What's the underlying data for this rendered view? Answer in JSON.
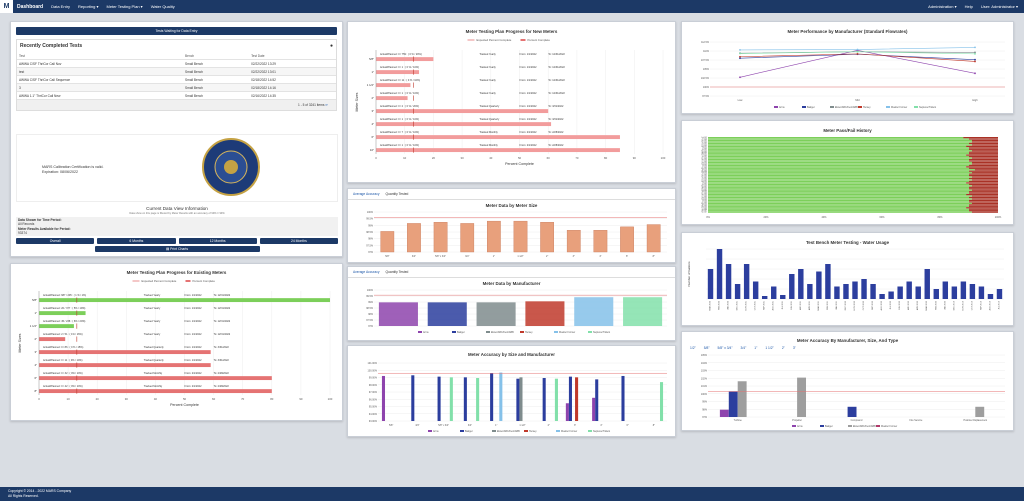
{
  "nav": {
    "logo": "M",
    "brand": "Dashboard",
    "items": [
      "Data Entry",
      "Reporting ▾",
      "Meter Testing Plan ▾",
      "Water Quality"
    ],
    "right": [
      "Administration ▾",
      "Help",
      "User: Administrator ▾"
    ]
  },
  "banner": {
    "label": "Tests Waiting for Data Entry"
  },
  "recent": {
    "title": "Recently Completed Tests",
    "columns": [
      "Test",
      "Bench",
      "Test Date"
    ],
    "rows": [
      [
        "AWWA C/SF ThriCor Call Nov",
        "Small Bench",
        "02/22/2022 13:29"
      ],
      [
        "test",
        "Small Bench",
        "02/22/2022 13:01"
      ],
      [
        "AWWA C/SF ThriCor Call Sequence",
        "Small Bench",
        "02/18/2022 14:52"
      ],
      [
        "3",
        "Small Bench",
        "02/18/2022 14:16"
      ],
      [
        "AWWA 1.1\" ThriCor Call New",
        "Small Bench",
        "02/16/2022 14:35"
      ]
    ],
    "pager": "1 - 5 of 3241 items"
  },
  "cert": {
    "line1": "MARS Calibration Certification is valid.",
    "line2": "Expiration: 08/06/2022",
    "seal": "Calibration Seal"
  },
  "view": {
    "title": "Current Data View Information",
    "note": "Data show on this page is filtered by Meter Results with an accuracy of 99% ± 99%",
    "period_label": "Data Shown for Time Period:",
    "period_value": "All Records",
    "results_label": "Meter Results Available for Period:",
    "results_value": "93374",
    "buttons": [
      "Overall",
      "6 Months",
      "12 Months",
      "24 Months"
    ],
    "print": "Print Charts"
  },
  "tabs": {
    "accuracy": "Average Accuracy",
    "quantity": "Quantity Tested"
  },
  "colors": {
    "nav": "#1c3966",
    "red": "#e57373",
    "green": "#7ccf5a",
    "pink": "#f5a3a3"
  },
  "chart_data": [
    {
      "id": "new_meters",
      "type": "bar",
      "title": "Meter Testing Plan Progress for New Meters",
      "legend": [
        "Expected Percent Complete",
        "Percent Complete"
      ],
      "xlabel": "Percent Complete",
      "ylabel": "Meter Sizes",
      "xlim": [
        0,
        100
      ],
      "categories": [
        "5/8\"",
        "1\"",
        "1 1/2\"",
        "2\"",
        "3\"",
        "4\"",
        "6\"",
        "10\""
      ],
      "values": [
        20,
        15,
        12,
        11,
        60,
        61,
        85,
        85
      ],
      "expected": [
        13,
        13,
        13,
        13,
        13,
        13,
        13,
        13
      ],
      "labels": [
        "Actual/Planned: 0 / 759 : ( 0 % / 20%)",
        "Actual/Planned: 0 / 1 : ( 0 % / 10%)",
        "Actual/Planned: 0 / 11 : ( 0 % / 10%)",
        "Actual/Planned: 0 / 1 : ( 0 % / 10%)",
        "Actual/Planned: 0 / 2 : ( 0 % / 20%)",
        "Actual/Planned: 0 / 1 : ( 0 % / 10%)",
        "Actual/Planned: 0 / 7 : ( 0 % / 10%)",
        "Actual/Planned: 0 / 1 : ( 0 % / 10%)"
      ],
      "freq": [
        "Tracked Yearly",
        "Tracked Yearly",
        "Tracked Yearly",
        "Tracked Yearly",
        "Tracked Quarterly",
        "Tracked Quarterly",
        "Tracked Monthly",
        "Tracked Monthly"
      ],
      "from": [
        "From: 1/1/2022",
        "From: 1/1/2022",
        "From: 1/1/2022",
        "From: 1/1/2022",
        "From: 1/1/2022",
        "From: 1/1/2022",
        "From: 2/1/2022",
        "From: 2/1/2022"
      ],
      "to": [
        "To: 12/31/2022",
        "To: 12/31/2022",
        "To: 12/31/2022",
        "To: 12/31/2022",
        "To: 3/31/2022",
        "To: 3/31/2022",
        "To: 2/28/2022",
        "To: 2/28/2022"
      ],
      "ticks": [
        0,
        10,
        20,
        30,
        40,
        50,
        60,
        70,
        80,
        90,
        100
      ]
    },
    {
      "id": "size",
      "type": "bar",
      "title": "Meter Data by Meter Size",
      "ylim": [
        97,
        100.5
      ],
      "ticks": [
        "97%",
        "97.5%",
        "98%",
        "98.5%",
        "99%",
        "99.5%",
        "100%"
      ],
      "categories": [
        "5/8\"",
        "3/4\"",
        "5/8\" x 3/4\"",
        "3/4\"",
        "1\"",
        "1 1/2\"",
        "2\"",
        "3\"",
        "4\"",
        "6\"",
        "8\""
      ],
      "values": [
        98.8,
        99.5,
        99.6,
        99.5,
        99.7,
        99.7,
        99.6,
        98.9,
        98.9,
        99.2,
        99.4
      ]
    },
    {
      "id": "manufacturer",
      "type": "bar",
      "title": "Meter Data by Manufacturer",
      "ylim": [
        97,
        100.5
      ],
      "ticks": [
        "97%",
        "97.5%",
        "98%",
        "98.5%",
        "99%",
        "99.5%",
        "100%"
      ],
      "series": [
        {
          "name": "Arms",
          "value": 99.3,
          "color": "#8e44ad"
        },
        {
          "name": "Badger",
          "value": 99.3,
          "color": "#2c3e9e"
        },
        {
          "name": "Elster/ABC/Kent/ABB",
          "value": 99.3,
          "color": "#7f8c8d"
        },
        {
          "name": "Hersey",
          "value": 99.4,
          "color": "#c0392b"
        },
        {
          "name": "Mueller Former",
          "value": 99.8,
          "color": "#85c1e9"
        },
        {
          "name": "Neptune/Trident",
          "value": 99.8,
          "color": "#82e0aa"
        }
      ]
    },
    {
      "id": "size_mfr",
      "type": "bar",
      "title": "Meter Accuracy by Size and Manufacturer",
      "ylim": [
        93,
        101.5
      ],
      "ticks": [
        "93.00%",
        "94.00%",
        "95.00%",
        "96.00%",
        "97.00%",
        "98.00%",
        "99.00%",
        "100.00%",
        "101.00%"
      ],
      "categories": [
        "5/8\"",
        "3/4\"",
        "5/8\" x 3/4\"",
        "3/4\"",
        "1\"",
        "1 1/2\"",
        "2\"",
        "3\"",
        "4\"",
        "6\"",
        "8\""
      ],
      "legend": [
        "Arms",
        "Badger",
        "Elster/ABC/Kent/ABB",
        "Hersey",
        "Mueller Former",
        "Neptune/Trident"
      ],
      "groups": [
        [
          99.6,
          0,
          0,
          0,
          0,
          0
        ],
        [
          0,
          99.7,
          0,
          0,
          0,
          0
        ],
        [
          0,
          99.5,
          0,
          0,
          0,
          99.4
        ],
        [
          0,
          99.4,
          0,
          0,
          0,
          99.3
        ],
        [
          0,
          100.0,
          0,
          0,
          100.1,
          0
        ],
        [
          0,
          99.2,
          99.4,
          0,
          0,
          0
        ],
        [
          0,
          99.3,
          0,
          0,
          0,
          99.2
        ],
        [
          95.6,
          99.5,
          0,
          99.4,
          0,
          0
        ],
        [
          96.4,
          99.1,
          0,
          0,
          0,
          0
        ],
        [
          0,
          99.6,
          0,
          0,
          0,
          0
        ],
        [
          0,
          0,
          0,
          0,
          0,
          98.7
        ]
      ]
    },
    {
      "id": "existing",
      "type": "bar",
      "title": "Meter Testing Plan Progress for Existing Meters",
      "legend": [
        "Expected Percent Complete",
        "Percent Complete"
      ],
      "xlabel": "Percent Complete",
      "ylabel": "Meter Sizes",
      "xlim": [
        0,
        100
      ],
      "categories": [
        "5/8\"",
        "1\"",
        "1 1/2\"",
        "2\"",
        "3\"",
        "4\"",
        "6\"",
        "8\""
      ],
      "values": [
        100,
        16,
        12,
        9,
        59,
        59,
        80,
        80
      ],
      "expected": [
        13,
        13,
        13,
        13,
        13,
        13,
        13,
        13
      ],
      "colors": [
        "#7ccf5a",
        "#7ccf5a",
        "#7ccf5a",
        "#e57373",
        "#e57373",
        "#e57373",
        "#e57373",
        "#e57373"
      ],
      "labels": [
        "Actual/Planned: 687 / 205 : ( 1 % / 1%)",
        "Actual/Planned: 20 / 377 : ( 5% / 19%)",
        "Actual/Planned: 45 / 238 : ( 6% / 20%)",
        "Actual/Planned: 2 / 51 : ( 1% / 16%)",
        "Actual/Planned: 0 / 86 : ( 0 % / 15%)",
        "Actual/Planned: 0 / 11 : ( 0% / 10%)",
        "Actual/Planned: 0 / 32 : ( 0% / 10%)",
        "Actual/Planned: 0 / 42 : ( 0% / 10%)"
      ],
      "freq": [
        "Tracked Yearly",
        "Tracked Yearly",
        "Tracked Yearly",
        "Tracked Yearly",
        "Tracked Quarterly",
        "Tracked Quarterly",
        "Tracked Monthly",
        "Tracked Monthly"
      ],
      "from": [
        "From: 1/1/2022",
        "From: 1/1/2022",
        "From: 1/1/2022",
        "From: 1/1/2022",
        "From: 1/1/2022",
        "From: 1/1/2022",
        "From: 2/1/2022",
        "From: 2/1/2022"
      ],
      "to": [
        "To: 12/31/2022",
        "To: 12/31/2022",
        "To: 12/31/2022",
        "To: 12/31/2022",
        "To: 3/31/2022",
        "To: 3/31/2022",
        "To: 2/28/2022",
        "To: 2/28/2022"
      ],
      "ticks": [
        0,
        10,
        20,
        30,
        40,
        50,
        60,
        70,
        80,
        90,
        100
      ]
    },
    {
      "id": "perf",
      "type": "line",
      "title": "Meter Performance by Manufacturer (Standard Flowrates)",
      "categories": [
        "Low",
        "Mid",
        "High"
      ],
      "ylim": [
        97.5,
        112.5
      ],
      "ticks": [
        "97.5%",
        "100%",
        "102.5%",
        "105%",
        "107.5%",
        "110%",
        "112.5%"
      ],
      "series": [
        {
          "name": "Arms",
          "color": "#8e44ad",
          "values": [
            102.7,
            110.2,
            103.8
          ]
        },
        {
          "name": "Badger",
          "color": "#2c3e9e",
          "values": [
            108.0,
            109.1,
            107.6
          ]
        },
        {
          "name": "Elster/ABC/Kent/ABB",
          "color": "#7f8c8d",
          "values": [
            109.4,
            109.8,
            109.6
          ]
        },
        {
          "name": "Hersey",
          "color": "#c0392b",
          "values": [
            108.4,
            109.2,
            107.1
          ]
        },
        {
          "name": "Mueller Former",
          "color": "#85c1e9",
          "values": [
            110.3,
            110.4,
            111.0
          ]
        },
        {
          "name": "Neptune/Trident",
          "color": "#82e0aa",
          "values": [
            109.3,
            109.8,
            109.2
          ]
        }
      ]
    },
    {
      "id": "passfail",
      "type": "bar",
      "title": "Meter Pass/Fail History",
      "ticks": [
        "0%",
        "20%",
        "40%",
        "60%",
        "80%",
        "100%"
      ],
      "categories": [
        "Feb 2022",
        "Jan 2022",
        "Dec 2021",
        "Nov 2021",
        "Oct 2021",
        "Sep 2021",
        "Aug 2021",
        "Jul 2021",
        "Jun 2021",
        "May 2021",
        "Apr 2021",
        "Mar 2021",
        "Feb 2021",
        "Jan 2021",
        "Dec 2020",
        "Nov 2020",
        "Oct 2020",
        "Sep 2020",
        "Aug 2020",
        "Jul 2020",
        "Jun 2020",
        "May 2020",
        "Apr 2020",
        "Mar 2020",
        "Feb 2020",
        "Jan 2020",
        "Dec 2019",
        "Nov 2019",
        "Oct 2019",
        "Sep 2019",
        "Aug 2019",
        "Jul 2019",
        "Jun 2019",
        "May 2019",
        "Apr 2019",
        "Mar 2019",
        "Feb 2019",
        "Jan 2019",
        "Dec 2018",
        "Nov 2018",
        "Oct 2018",
        "Sep 2018",
        "Aug 2018",
        "Jul 2018",
        "Jun 2018",
        "May 2018",
        "Apr 2018",
        "Mar 2018",
        "Feb 2018",
        "Jan 2018",
        "Dec 2017",
        "Nov 2017"
      ],
      "pass_pct": [
        88,
        90,
        91,
        91,
        90,
        91,
        89,
        90,
        90,
        91,
        90,
        90,
        89,
        90,
        91,
        90,
        90,
        91,
        91,
        90,
        89,
        90,
        92,
        90,
        91,
        90,
        90,
        91,
        90,
        91,
        90,
        89,
        90,
        91,
        90,
        90,
        91,
        90,
        90,
        89,
        91,
        90,
        91,
        90,
        90,
        91,
        90,
        90,
        89,
        90,
        90,
        91
      ]
    },
    {
      "id": "water",
      "type": "bar",
      "title": "Test Bench Meter Testing - Water Usage",
      "ylabel": "Number of Gallons",
      "categories": [
        "MAR 2022",
        "FEB 2022",
        "JAN 2022",
        "DEC 2021",
        "NOV 2021",
        "OCT 2021",
        "SEP 2021",
        "AUG 2021",
        "JUL 2021",
        "JUN 2021",
        "MAY 2021",
        "APR 2021",
        "MAR 2021",
        "FEB 2021",
        "JAN 2021",
        "DEC 2020",
        "NOV 2020",
        "OCT 2020",
        "SEP 2020",
        "AUG 2020",
        "JUL 2020",
        "JUN 2020",
        "MAY 2020",
        "APR 2020",
        "MAR 2020",
        "FEB 2020",
        "JAN 2020",
        "DEC 2019",
        "NOV 2019",
        "OCT 2019",
        "SEP 2019",
        "AUG 2019",
        "JUL 2019"
      ],
      "values": [
        600,
        1000,
        700,
        300,
        700,
        350,
        60,
        250,
        80,
        500,
        600,
        300,
        550,
        700,
        250,
        300,
        350,
        400,
        300,
        100,
        150,
        250,
        350,
        250,
        600,
        200,
        350,
        250,
        350,
        300,
        250,
        100,
        200
      ]
    },
    {
      "id": "mfr_size_type",
      "type": "bar",
      "title": "Meter Accuracy By Manufacturer, Size, And Type",
      "tabs": [
        "1/2\"",
        "5/8\"",
        "5/8\" x 3/4\"",
        "3/4\"",
        "1\"",
        "1 1/2\"",
        "2\"",
        "3\""
      ],
      "ticks": [
        "97%",
        "98%",
        "99%",
        "100%",
        "101%",
        "102%",
        "103%",
        "104%",
        "105%"
      ],
      "ylim": [
        96.5,
        105
      ],
      "categories": [
        "Turbine",
        "Propeller",
        "Compound",
        "Fire Service",
        "Positive Displacement"
      ],
      "legend": [
        "Arms",
        "Badger",
        "Elster/ABC/Kent/ABB",
        "Mueller Former"
      ],
      "groups": [
        [
          97.5,
          100.0,
          101.4,
          0
        ],
        [
          0,
          0,
          101.9,
          0
        ],
        [
          0,
          97.9,
          0,
          0
        ],
        [
          0,
          0,
          0,
          0
        ],
        [
          0,
          0,
          97.9,
          0
        ]
      ]
    }
  ],
  "footer": {
    "line1": "Copyright © 2014 - 2022 MARS Company",
    "line2": "All Rights Reserved."
  }
}
